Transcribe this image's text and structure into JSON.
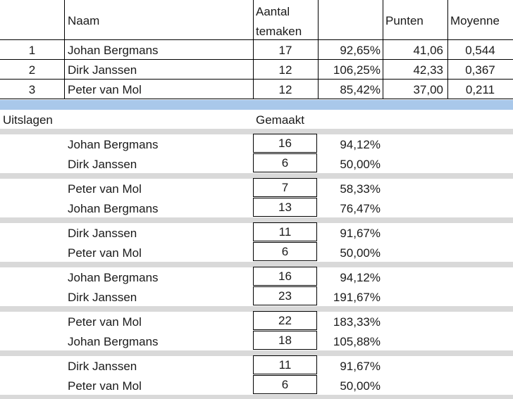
{
  "standings": {
    "headers": {
      "name": "Naam",
      "aantal_line1": "Aantal",
      "aantal_line2": "temaken",
      "punten": "Punten",
      "moyenne": "Moyenne"
    },
    "rows": [
      {
        "rank": "1",
        "name": "Johan Bergmans",
        "aantal": "17",
        "pct": "92,65%",
        "punten": "41,06",
        "moyenne": "0,544"
      },
      {
        "rank": "2",
        "name": "Dirk Janssen",
        "aantal": "12",
        "pct": "106,25%",
        "punten": "42,33",
        "moyenne": "0,367"
      },
      {
        "rank": "3",
        "name": "Peter van Mol",
        "aantal": "12",
        "pct": "85,42%",
        "punten": "37,00",
        "moyenne": "0,211"
      }
    ]
  },
  "results": {
    "label": "Uitslagen",
    "made_label": "Gemaakt",
    "matches": [
      {
        "p1": {
          "name": "Johan Bergmans",
          "made": "16",
          "pct": "94,12%"
        },
        "p2": {
          "name": "Dirk Janssen",
          "made": "6",
          "pct": "50,00%"
        }
      },
      {
        "p1": {
          "name": "Peter van Mol",
          "made": "7",
          "pct": "58,33%"
        },
        "p2": {
          "name": "Johan Bergmans",
          "made": "13",
          "pct": "76,47%"
        }
      },
      {
        "p1": {
          "name": "Dirk Janssen",
          "made": "11",
          "pct": "91,67%"
        },
        "p2": {
          "name": "Peter van Mol",
          "made": "6",
          "pct": "50,00%"
        }
      },
      {
        "p1": {
          "name": "Johan Bergmans",
          "made": "16",
          "pct": "94,12%"
        },
        "p2": {
          "name": "Dirk Janssen",
          "made": "23",
          "pct": "191,67%"
        }
      },
      {
        "p1": {
          "name": "Peter van Mol",
          "made": "22",
          "pct": "183,33%"
        },
        "p2": {
          "name": "Johan Bergmans",
          "made": "18",
          "pct": "105,88%"
        }
      },
      {
        "p1": {
          "name": "Dirk Janssen",
          "made": "11",
          "pct": "91,67%"
        },
        "p2": {
          "name": "Peter van Mol",
          "made": "6",
          "pct": "50,00%"
        }
      }
    ]
  },
  "colors": {
    "separator_gray": "#d9d9d9",
    "separator_blue": "#a9c8ea",
    "grid_line": "#000000"
  }
}
